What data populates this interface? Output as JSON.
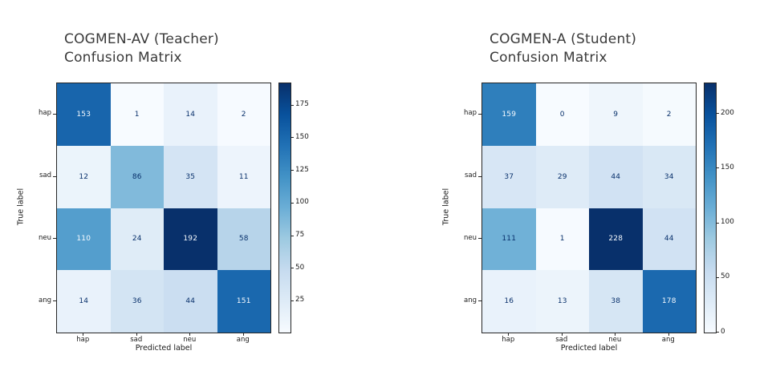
{
  "figure": {
    "background": "#ffffff",
    "title_color": "#3a3a3a",
    "axis_color": "#262626",
    "tick_text_color": "#1a1a1a"
  },
  "colormap": {
    "name": "Blues",
    "anchors": [
      "#f7fbff",
      "#deebf7",
      "#c6dbef",
      "#9ecae1",
      "#6baed6",
      "#4292c6",
      "#2171b5",
      "#08519c",
      "#08306b"
    ],
    "dark_text": "#08306b",
    "light_text": "#f7fbff"
  },
  "chart_data": [
    {
      "type": "heatmap",
      "title": "COGMEN-AV (Teacher)\nConfusion Matrix",
      "xlabel": "Predicted label",
      "ylabel": "True label",
      "x_categories": [
        "hap",
        "sad",
        "neu",
        "ang"
      ],
      "y_categories": [
        "hap",
        "sad",
        "neu",
        "ang"
      ],
      "values": [
        [
          153,
          1,
          14,
          2
        ],
        [
          12,
          86,
          35,
          11
        ],
        [
          110,
          24,
          192,
          58
        ],
        [
          14,
          36,
          44,
          151
        ]
      ],
      "vmin": 1,
      "vmax": 192,
      "colorbar_ticks": [
        25,
        50,
        75,
        100,
        125,
        150,
        175
      ],
      "legend": "none",
      "grid": "off"
    },
    {
      "type": "heatmap",
      "title": "COGMEN-A (Student)\nConfusion Matrix",
      "xlabel": "Predicted label",
      "ylabel": "True label",
      "x_categories": [
        "hap",
        "sad",
        "neu",
        "ang"
      ],
      "y_categories": [
        "hap",
        "sad",
        "neu",
        "ang"
      ],
      "values": [
        [
          159,
          0,
          9,
          2
        ],
        [
          37,
          29,
          44,
          34
        ],
        [
          111,
          1,
          228,
          44
        ],
        [
          16,
          13,
          38,
          178
        ]
      ],
      "vmin": 0,
      "vmax": 228,
      "colorbar_ticks": [
        0,
        50,
        100,
        150,
        200
      ],
      "legend": "none",
      "grid": "off"
    }
  ]
}
